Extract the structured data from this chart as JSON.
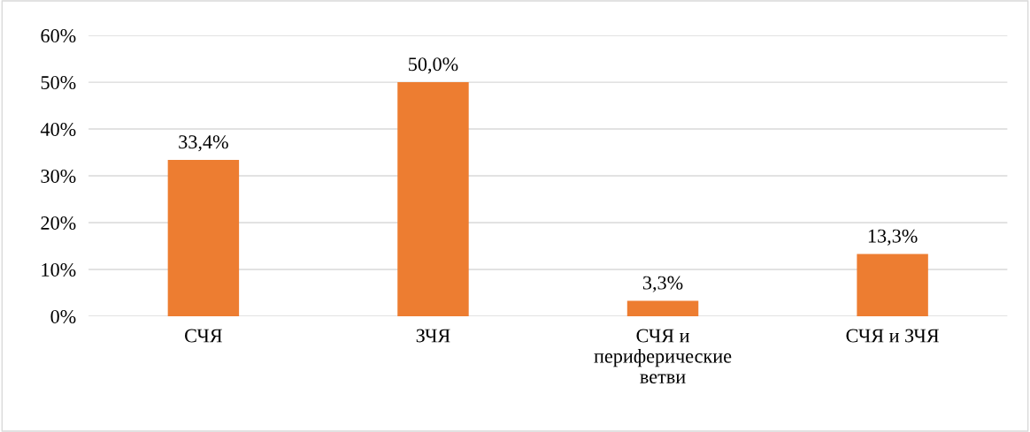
{
  "chart_data": {
    "type": "bar",
    "categories": [
      "СЧЯ",
      "ЗЧЯ",
      "СЧЯ и\nпериферические\nветви",
      "СЧЯ и ЗЧЯ"
    ],
    "values": [
      33.4,
      50.0,
      3.3,
      13.3
    ],
    "value_labels": [
      "33,4%",
      "50,0%",
      "3,3%",
      "13,3%"
    ],
    "color": "#ed7d31",
    "ylim": [
      0,
      60
    ],
    "yticks": [
      {
        "value": 0,
        "label": "0%"
      },
      {
        "value": 10,
        "label": "10%"
      },
      {
        "value": 20,
        "label": "20%"
      },
      {
        "value": 30,
        "label": "30%"
      },
      {
        "value": 40,
        "label": "40%"
      },
      {
        "value": 50,
        "label": "50%"
      },
      {
        "value": 60,
        "label": "60%"
      }
    ],
    "grid": "y",
    "legend": false
  }
}
